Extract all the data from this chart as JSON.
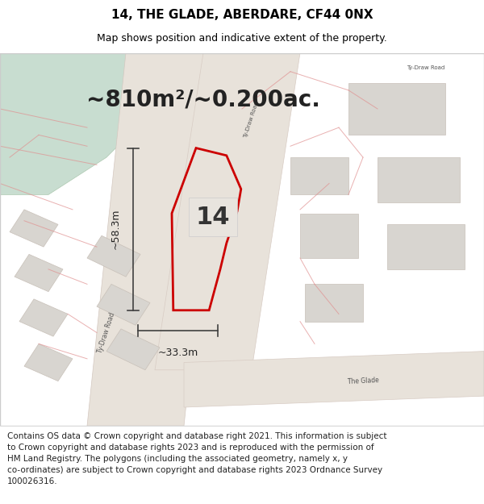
{
  "title": "14, THE GLADE, ABERDARE, CF44 0NX",
  "subtitle": "Map shows position and indicative extent of the property.",
  "area_text": "~810m²/~0.200ac.",
  "width_label": "~33.3m",
  "height_label": "~58.3m",
  "number_label": "14",
  "footer_lines": [
    "Contains OS data © Crown copyright and database right 2021. This information is subject",
    "to Crown copyright and database rights 2023 and is reproduced with the permission of",
    "HM Land Registry. The polygons (including the associated geometry, namely x, y",
    "co-ordinates) are subject to Crown copyright and database rights 2023 Ordnance Survey",
    "100026316."
  ],
  "map_bg": "#f0ede8",
  "plot_color": "#cc0000",
  "dim_line_color": "#404040",
  "title_fontsize": 11,
  "subtitle_fontsize": 9,
  "area_fontsize": 20,
  "label_fontsize": 9,
  "number_fontsize": 22,
  "footer_fontsize": 7.5
}
